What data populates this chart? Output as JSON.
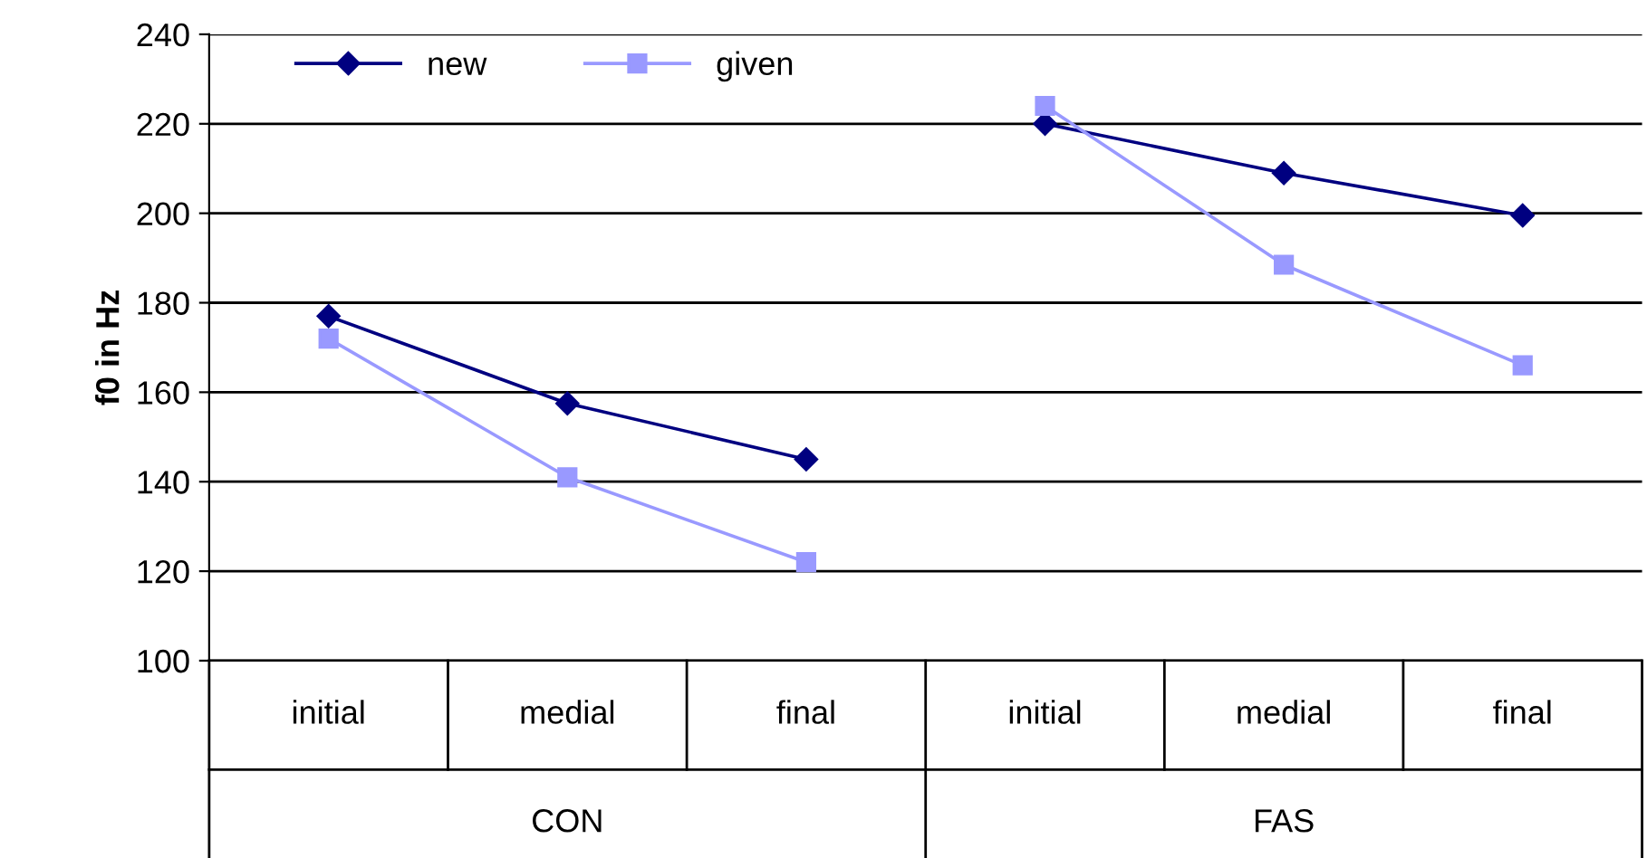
{
  "chart_data": {
    "type": "line",
    "ylabel": "f0 in Hz",
    "categories": [
      "initial",
      "medial",
      "final",
      "initial",
      "medial",
      "final"
    ],
    "annotations": [
      "CON",
      "FAS"
    ],
    "series": [
      {
        "name": "new",
        "color": "#000080",
        "marker": "diamond",
        "values": [
          177,
          157.5,
          145,
          220,
          209,
          199.5
        ]
      },
      {
        "name": "given",
        "color": "#9999ff",
        "marker": "square",
        "values": [
          172,
          141,
          122,
          224,
          188.5,
          166
        ]
      }
    ],
    "ylim": [
      100,
      240
    ],
    "yticks": [
      100,
      120,
      140,
      160,
      180,
      200,
      220,
      240
    ],
    "grid": "y",
    "legend": "top left"
  }
}
